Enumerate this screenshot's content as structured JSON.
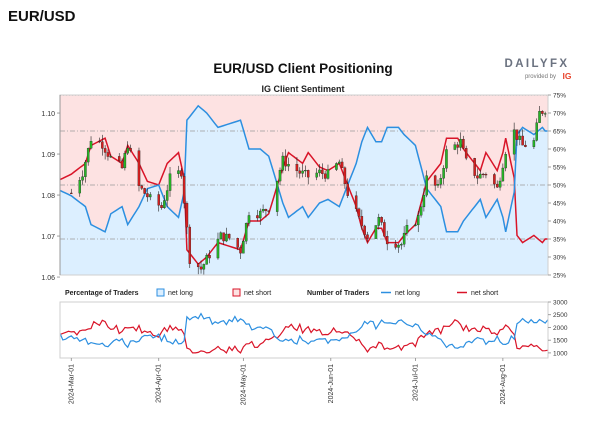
{
  "page": {
    "title": "EUR/USD"
  },
  "brand": {
    "name": "DAILYFX",
    "provided_by": "provided by",
    "provider_logo": "IG"
  },
  "chart_data": [
    {
      "type": "candlestick+line",
      "title": "EUR/USD Client Positioning",
      "subtitle": "IG Client Sentiment",
      "y_left_ticks": [
        "1.06",
        "1.07",
        "1.08",
        "1.09",
        "1.10"
      ],
      "y_left_values": [
        1.06,
        1.07,
        1.08,
        1.09,
        1.1
      ],
      "ylim_left": [
        1.0605,
        1.1044
      ],
      "y_right_ticks": [
        "25%",
        "30%",
        "35%",
        "40%",
        "45%",
        "50%",
        "55%",
        "60%",
        "65%",
        "70%",
        "75%"
      ],
      "y_right_values": [
        25,
        30,
        35,
        40,
        45,
        50,
        55,
        60,
        65,
        70,
        75
      ],
      "ylim_right": [
        25,
        75
      ],
      "reference_lines_percent": [
        35,
        50,
        65
      ],
      "colors": {
        "bull": "#27b427",
        "bear": "#d41f1f",
        "wick": "#222222",
        "net_long_line": "#2c8fe0",
        "net_short_line": "#d91428",
        "long_fill": "#dcefff",
        "short_fill": "#fde2e2"
      },
      "price_anchors": [
        [
          "2024-03-01",
          1.0805
        ],
        [
          "2024-03-05",
          1.0855
        ],
        [
          "2024-03-08",
          1.0938
        ],
        [
          "2024-03-12",
          1.0925
        ],
        [
          "2024-03-15",
          1.089
        ],
        [
          "2024-03-19",
          1.0865
        ],
        [
          "2024-03-21",
          1.0925
        ],
        [
          "2024-03-25",
          1.082
        ],
        [
          "2024-03-29",
          1.079
        ],
        [
          "2024-04-02",
          1.077
        ],
        [
          "2024-04-05",
          1.084
        ],
        [
          "2024-04-09",
          1.0858
        ],
        [
          "2024-04-12",
          1.0645
        ],
        [
          "2024-04-16",
          1.062
        ],
        [
          "2024-04-19",
          1.0655
        ],
        [
          "2024-04-23",
          1.07
        ],
        [
          "2024-04-26",
          1.0695
        ],
        [
          "2024-04-30",
          1.0665
        ],
        [
          "2024-05-03",
          1.076
        ],
        [
          "2024-05-07",
          1.0755
        ],
        [
          "2024-05-10",
          1.077
        ],
        [
          "2024-05-15",
          1.0885
        ],
        [
          "2024-05-21",
          1.0855
        ],
        [
          "2024-05-24",
          1.0845
        ],
        [
          "2024-05-28",
          1.0855
        ],
        [
          "2024-05-31",
          1.085
        ],
        [
          "2024-06-04",
          1.088
        ],
        [
          "2024-06-07",
          1.0805
        ],
        [
          "2024-06-11",
          1.074
        ],
        [
          "2024-06-14",
          1.07
        ],
        [
          "2024-06-18",
          1.074
        ],
        [
          "2024-06-21",
          1.069
        ],
        [
          "2024-06-26",
          1.068
        ],
        [
          "2024-06-28",
          1.0715
        ],
        [
          "2024-07-02",
          1.0745
        ],
        [
          "2024-07-05",
          1.084
        ],
        [
          "2024-07-09",
          1.0815
        ],
        [
          "2024-07-12",
          1.0905
        ],
        [
          "2024-07-17",
          1.093
        ],
        [
          "2024-07-19",
          1.088
        ],
        [
          "2024-07-23",
          1.0845
        ],
        [
          "2024-07-26",
          1.0855
        ],
        [
          "2024-07-30",
          1.0815
        ],
        [
          "2024-08-02",
          1.091
        ],
        [
          "2024-08-05",
          1.0955
        ],
        [
          "2024-08-08",
          1.092
        ],
        [
          "2024-08-12",
          1.093
        ],
        [
          "2024-08-14",
          1.1
        ],
        [
          "2024-08-16",
          1.101
        ]
      ],
      "net_long_pct_anchors": [
        [
          "2024-02-26",
          48.5
        ],
        [
          "2024-03-01",
          47
        ],
        [
          "2024-03-06",
          44
        ],
        [
          "2024-03-08",
          39
        ],
        [
          "2024-03-13",
          37
        ],
        [
          "2024-03-15",
          42
        ],
        [
          "2024-03-19",
          44
        ],
        [
          "2024-03-21",
          39
        ],
        [
          "2024-03-25",
          44
        ],
        [
          "2024-03-28",
          49
        ],
        [
          "2024-04-01",
          50
        ],
        [
          "2024-04-04",
          44
        ],
        [
          "2024-04-08",
          41
        ],
        [
          "2024-04-10",
          48
        ],
        [
          "2024-04-11",
          68
        ],
        [
          "2024-04-15",
          72
        ],
        [
          "2024-04-18",
          70
        ],
        [
          "2024-04-22",
          66
        ],
        [
          "2024-04-26",
          67
        ],
        [
          "2024-04-30",
          68
        ],
        [
          "2024-05-03",
          60
        ],
        [
          "2024-05-07",
          60
        ],
        [
          "2024-05-10",
          58
        ],
        [
          "2024-05-15",
          45
        ],
        [
          "2024-05-17",
          41
        ],
        [
          "2024-05-22",
          44
        ],
        [
          "2024-05-24",
          41
        ],
        [
          "2024-05-28",
          45
        ],
        [
          "2024-05-31",
          46
        ],
        [
          "2024-06-04",
          44
        ],
        [
          "2024-06-06",
          48
        ],
        [
          "2024-06-10",
          56
        ],
        [
          "2024-06-12",
          62
        ],
        [
          "2024-06-14",
          66
        ],
        [
          "2024-06-17",
          62
        ],
        [
          "2024-06-19",
          62
        ],
        [
          "2024-06-21",
          66
        ],
        [
          "2024-06-25",
          66
        ],
        [
          "2024-06-27",
          64
        ],
        [
          "2024-07-01",
          61
        ],
        [
          "2024-07-03",
          55
        ],
        [
          "2024-07-05",
          49
        ],
        [
          "2024-07-08",
          46
        ],
        [
          "2024-07-10",
          44
        ],
        [
          "2024-07-12",
          37
        ],
        [
          "2024-07-16",
          37
        ],
        [
          "2024-07-18",
          40
        ],
        [
          "2024-07-22",
          44
        ],
        [
          "2024-07-24",
          46
        ],
        [
          "2024-07-26",
          41
        ],
        [
          "2024-07-30",
          46
        ],
        [
          "2024-08-01",
          41
        ],
        [
          "2024-08-02",
          37
        ],
        [
          "2024-08-05",
          48
        ],
        [
          "2024-08-06",
          64
        ],
        [
          "2024-08-08",
          66
        ],
        [
          "2024-08-12",
          64
        ],
        [
          "2024-08-15",
          66
        ],
        [
          "2024-08-16",
          65
        ]
      ],
      "percentage_legend": {
        "title": "Percentage of Traders",
        "net_long": "net long",
        "net_short": "net short"
      },
      "number_legend": {
        "title": "Number of Traders",
        "net_long": "net long",
        "net_short": "net short"
      },
      "y_bottom_ticks": [
        "1000",
        "1500",
        "2000",
        "2500",
        "3000"
      ],
      "y_bottom_values": [
        1000,
        1500,
        2000,
        2500,
        3000
      ],
      "ylim_bottom": [
        800,
        3000
      ],
      "x_ticks": [
        "2024-Mar-01",
        "2024-Apr-01",
        "2024-May-01",
        "2024-Jun-01",
        "2024-Jul-01",
        "2024-Aug-01"
      ],
      "x_tick_dates": [
        "2024-03-01",
        "2024-04-01",
        "2024-05-01",
        "2024-06-01",
        "2024-07-01",
        "2024-08-01"
      ],
      "x_range": [
        "2024-02-26",
        "2024-08-17"
      ]
    }
  ]
}
